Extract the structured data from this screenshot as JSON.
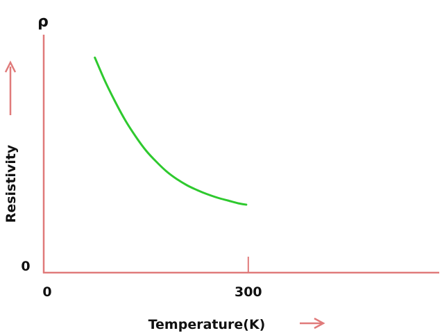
{
  "chart_data": {
    "type": "line",
    "yaxis_symbol": "ρ",
    "ylabel": "Resistivity",
    "xlabel": "Temperature(K)",
    "x_ticks": [
      {
        "value": 0,
        "label": "0"
      },
      {
        "value": 300,
        "label": "300"
      }
    ],
    "y_ticks": [
      {
        "value": 0,
        "label": "0"
      }
    ],
    "xlim": [
      0,
      580
    ],
    "ylim": [
      0,
      330
    ],
    "grid": false,
    "colors": {
      "axis": "#e07a7a",
      "curve": "#2ec92e",
      "text": "#111111"
    },
    "series": [
      {
        "x": [
          75,
          90,
          105,
          120,
          135,
          150,
          165,
          180,
          195,
          210,
          225,
          240,
          255,
          270,
          285,
          297
        ],
        "values": [
          310,
          276,
          246,
          219,
          196,
          176,
          160,
          146,
          135,
          126,
          119,
          113,
          108,
          104,
          100,
          98
        ]
      }
    ]
  }
}
